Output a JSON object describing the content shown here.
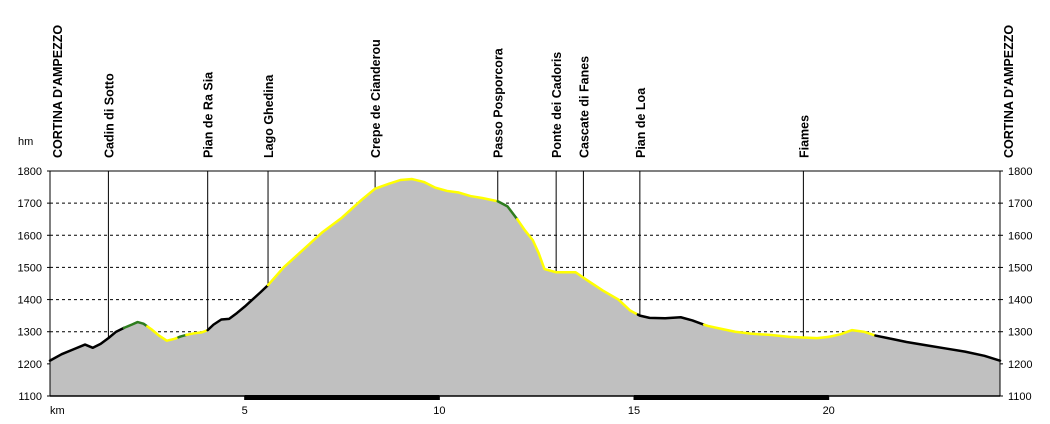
{
  "chart_data": {
    "type": "area",
    "xlabel": "km",
    "ylabel": "hm",
    "xlim": [
      0,
      24.4
    ],
    "ylim": [
      1100,
      1800
    ],
    "x_ticks": [
      5,
      10,
      15,
      20
    ],
    "y_ticks": [
      1100,
      1200,
      1300,
      1400,
      1500,
      1600,
      1700,
      1800
    ],
    "grid": "horizontal-dashed",
    "colors": {
      "fill": "#c0c0c0",
      "line_default": "#000000",
      "line_climb": "#ffff00",
      "line_steep": "#2e7d1e",
      "grid": "#000000",
      "axis_band": "#000000"
    },
    "waypoints": [
      {
        "km": 0.0,
        "name": "CORTINA D'AMPEZZO"
      },
      {
        "km": 1.5,
        "name": "Cadin di Sotto"
      },
      {
        "km": 4.05,
        "name": "Pian de Ra Sia"
      },
      {
        "km": 5.6,
        "name": "Lago Ghedina"
      },
      {
        "km": 8.35,
        "name": "Crepe de Cianderou"
      },
      {
        "km": 11.5,
        "name": "Passo Posporcora"
      },
      {
        "km": 13.0,
        "name": "Ponte dei Cadoris"
      },
      {
        "km": 13.7,
        "name": "Cascate di Fanes"
      },
      {
        "km": 15.15,
        "name": "Pian de Loa"
      },
      {
        "km": 19.35,
        "name": "Fiames"
      },
      {
        "km": 24.4,
        "name": "CORTINA D'AMPEZZO"
      }
    ],
    "profile": {
      "x": [
        0,
        0.3,
        0.6,
        0.9,
        1.1,
        1.3,
        1.5,
        1.7,
        1.9,
        2.1,
        2.25,
        2.4,
        2.6,
        2.8,
        3.0,
        3.2,
        3.35,
        3.5,
        3.7,
        3.9,
        4.05,
        4.2,
        4.4,
        4.6,
        4.8,
        5.0,
        5.2,
        5.4,
        5.6,
        6.0,
        6.5,
        7.0,
        7.5,
        8.0,
        8.35,
        8.7,
        9.0,
        9.3,
        9.6,
        9.9,
        10.2,
        10.5,
        10.8,
        11.1,
        11.5,
        11.75,
        12.0,
        12.2,
        12.4,
        12.55,
        12.7,
        13.0,
        13.5,
        13.8,
        14.2,
        14.6,
        14.9,
        15.15,
        15.4,
        15.8,
        16.2,
        16.5,
        16.7,
        16.9,
        17.2,
        17.6,
        18.0,
        18.5,
        19.0,
        19.35,
        19.7,
        20.0,
        20.3,
        20.6,
        20.9,
        21.2,
        21.6,
        22.0,
        22.5,
        23.0,
        23.5,
        24.0,
        24.4
      ],
      "y": [
        1210,
        1230,
        1245,
        1260,
        1250,
        1262,
        1280,
        1300,
        1312,
        1322,
        1330,
        1325,
        1308,
        1288,
        1272,
        1278,
        1285,
        1290,
        1295,
        1298,
        1305,
        1322,
        1338,
        1340,
        1358,
        1378,
        1400,
        1422,
        1445,
        1500,
        1555,
        1610,
        1655,
        1710,
        1745,
        1760,
        1772,
        1775,
        1766,
        1748,
        1738,
        1733,
        1722,
        1716,
        1706,
        1690,
        1650,
        1615,
        1585,
        1545,
        1495,
        1485,
        1485,
        1460,
        1428,
        1400,
        1366,
        1350,
        1343,
        1342,
        1345,
        1335,
        1326,
        1318,
        1310,
        1300,
        1294,
        1290,
        1284,
        1282,
        1280,
        1284,
        1292,
        1305,
        1300,
        1288,
        1278,
        1268,
        1258,
        1248,
        1238,
        1225,
        1210
      ]
    },
    "line_segments": [
      {
        "from": 0,
        "to": 1.9,
        "type": "default"
      },
      {
        "from": 1.9,
        "to": 2.5,
        "type": "steep"
      },
      {
        "from": 2.5,
        "to": 3.3,
        "type": "climb"
      },
      {
        "from": 3.3,
        "to": 3.5,
        "type": "steep"
      },
      {
        "from": 3.5,
        "to": 4.05,
        "type": "climb"
      },
      {
        "from": 4.05,
        "to": 5.6,
        "type": "default"
      },
      {
        "from": 5.6,
        "to": 11.5,
        "type": "climb"
      },
      {
        "from": 11.5,
        "to": 12.0,
        "type": "steep"
      },
      {
        "from": 12.0,
        "to": 15.1,
        "type": "climb"
      },
      {
        "from": 15.1,
        "to": 16.8,
        "type": "default"
      },
      {
        "from": 16.8,
        "to": 20.0,
        "type": "climb"
      },
      {
        "from": 20.0,
        "to": 21.2,
        "type": "climb"
      },
      {
        "from": 21.2,
        "to": 24.4,
        "type": "default"
      }
    ],
    "axis_bands": [
      [
        5,
        10
      ],
      [
        15,
        20
      ]
    ]
  }
}
